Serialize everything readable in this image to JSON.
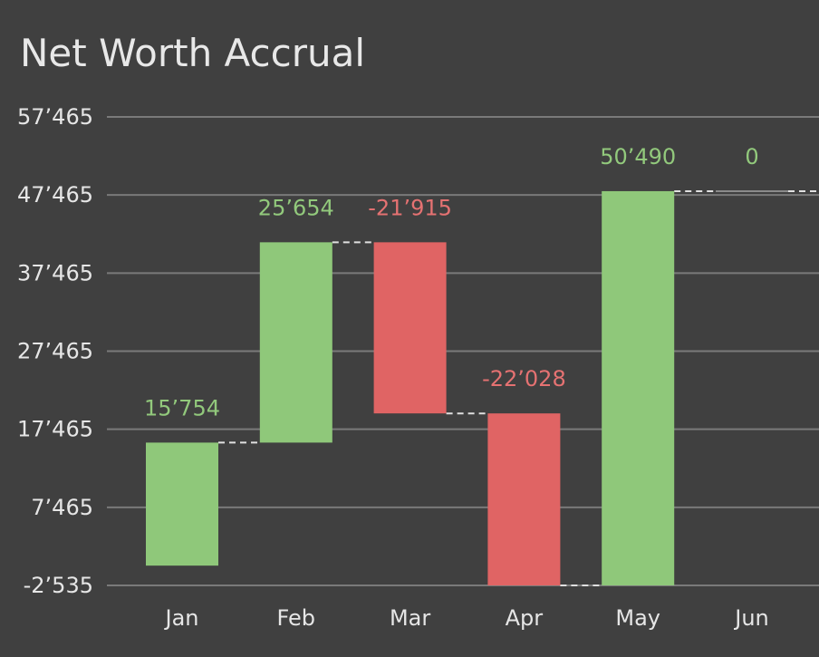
{
  "chart_data": {
    "type": "bar",
    "subtype": "waterfall",
    "title": "Net Worth Accrual",
    "categories": [
      "Jan",
      "Feb",
      "Mar",
      "Apr",
      "May",
      "Jun"
    ],
    "values": [
      15754,
      25654,
      -21915,
      -22028,
      50490,
      0
    ],
    "value_labels": [
      "15’754",
      "25’654",
      "-21’915",
      "-22’028",
      "50’490",
      "0"
    ],
    "start_value": 0,
    "yticks": [
      -2535,
      7465,
      17465,
      27465,
      37465,
      47465,
      57465
    ],
    "ytick_labels": [
      "-2’535",
      "7’465",
      "17’465",
      "27’465",
      "37’465",
      "47’465",
      "57’465"
    ],
    "ylim": [
      -2535,
      57465
    ],
    "grid": true,
    "legend": "none",
    "colors": {
      "positive": "#8fc87a",
      "negative": "#e06464",
      "positive_label": "#92c97c",
      "negative_label": "#e57272",
      "grid": "#7a7a7a",
      "connector": "#e0e0e0",
      "background": "#404040"
    }
  }
}
